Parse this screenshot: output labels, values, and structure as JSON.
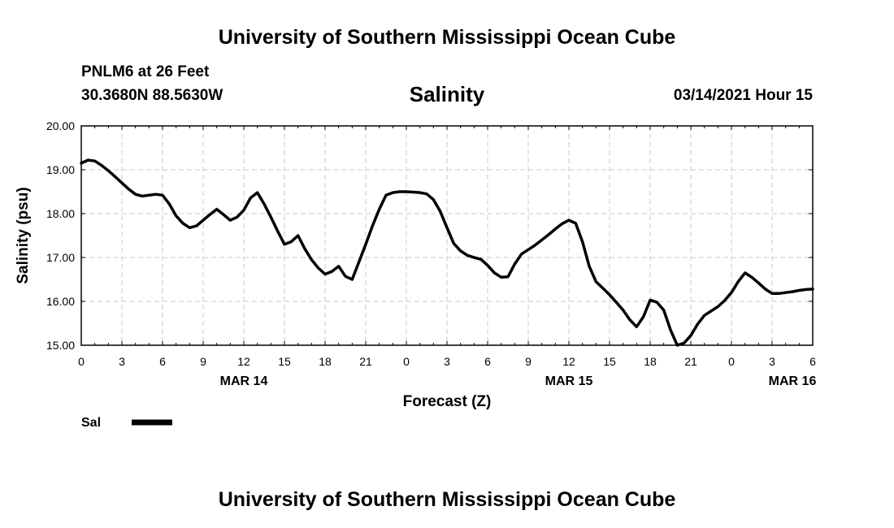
{
  "header": {
    "top_title": "University of Southern Mississippi Ocean Cube",
    "station": "PNLM6 at 26 Feet",
    "coords": "30.3680N 88.5630W",
    "chart_title": "Salinity",
    "datetime": "03/14/2021 Hour 15"
  },
  "footer": {
    "bottom_title": "University of Southern Mississippi Ocean Cube"
  },
  "chart_data": {
    "type": "line",
    "title": "Salinity",
    "xlabel": "Forecast (Z)",
    "ylabel": "Salinity (psu)",
    "ylim": [
      15.0,
      20.0
    ],
    "yticks": [
      "15.00",
      "16.00",
      "17.00",
      "18.00",
      "19.00",
      "20.00"
    ],
    "xlim": [
      0,
      54
    ],
    "xticks": [
      "0",
      "3",
      "6",
      "9",
      "12",
      "15",
      "18",
      "21",
      "0",
      "3",
      "6",
      "9",
      "12",
      "15",
      "18",
      "21",
      "0",
      "3",
      "6"
    ],
    "day_labels": [
      "MAR 14",
      "MAR 15",
      "MAR 16"
    ],
    "grid": true,
    "legend": "bottom-left",
    "series": [
      {
        "name": "Sal",
        "color": "#000000",
        "x": [
          0,
          0.5,
          1,
          1.5,
          2,
          2.5,
          3,
          3.5,
          4,
          4.5,
          5,
          5.5,
          6,
          6.5,
          7,
          7.5,
          8,
          8.5,
          9,
          9.5,
          10,
          10.5,
          11,
          11.5,
          12,
          12.5,
          13,
          13.5,
          14,
          14.5,
          15,
          15.5,
          16,
          16.5,
          17,
          17.5,
          18,
          18.5,
          19,
          19.5,
          20,
          20.5,
          21,
          21.5,
          22,
          22.5,
          23,
          23.5,
          24,
          24.5,
          25,
          25.5,
          26,
          26.5,
          27,
          27.5,
          28,
          28.5,
          29,
          29.5,
          30,
          30.5,
          31,
          31.5,
          32,
          32.5,
          33,
          33.5,
          34,
          34.5,
          35,
          35.5,
          36,
          36.5,
          37,
          37.5,
          38,
          38.5,
          39,
          39.5,
          40,
          40.5,
          41,
          41.5,
          42,
          42.5,
          43,
          43.5,
          44,
          44.5,
          45,
          45.5,
          46,
          46.5,
          47,
          47.5,
          48,
          48.5,
          49,
          49.5,
          50,
          50.5,
          51,
          51.5,
          52,
          52.5,
          53,
          53.5,
          54
        ],
        "values": [
          19.15,
          19.22,
          19.2,
          19.1,
          18.98,
          18.84,
          18.7,
          18.56,
          18.44,
          18.4,
          18.42,
          18.44,
          18.42,
          18.22,
          17.95,
          17.78,
          17.68,
          17.72,
          17.85,
          17.98,
          18.1,
          17.98,
          17.85,
          17.92,
          18.08,
          18.36,
          18.48,
          18.22,
          17.92,
          17.6,
          17.3,
          17.36,
          17.5,
          17.2,
          16.95,
          16.76,
          16.62,
          16.68,
          16.8,
          16.57,
          16.5,
          16.9,
          17.3,
          17.72,
          18.1,
          18.42,
          18.48,
          18.5,
          18.5,
          18.49,
          18.48,
          18.45,
          18.32,
          18.05,
          17.68,
          17.32,
          17.15,
          17.05,
          17.0,
          16.96,
          16.82,
          16.65,
          16.55,
          16.56,
          16.85,
          17.08,
          17.18,
          17.28,
          17.4,
          17.52,
          17.65,
          17.77,
          17.85,
          17.78,
          17.36,
          16.8,
          16.45,
          16.3,
          16.15,
          15.98,
          15.8,
          15.58,
          15.42,
          15.65,
          16.03,
          15.98,
          15.8,
          15.35,
          15.0,
          15.05,
          15.22,
          15.48,
          15.68,
          15.78,
          15.88,
          16.02,
          16.2,
          16.45,
          16.65,
          16.55,
          16.42,
          16.28,
          16.18,
          16.18,
          16.2,
          16.22,
          16.25,
          16.27,
          16.28
        ]
      }
    ]
  }
}
